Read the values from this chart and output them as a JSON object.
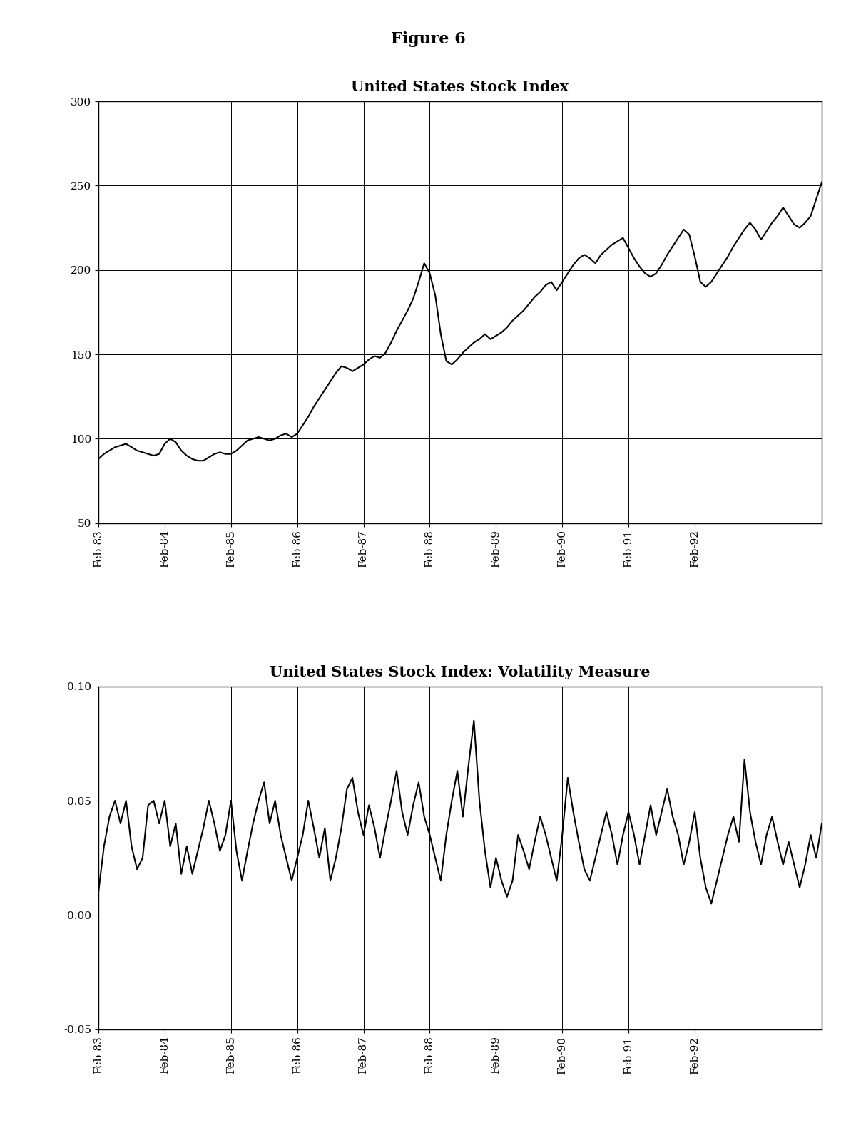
{
  "figure_title": "Figure 6",
  "plot1_title": "United States Stock Index",
  "plot2_title": "United States Stock Index: Volatility Measure",
  "x_labels": [
    "Feb-83",
    "Feb-84",
    "Feb-85",
    "Feb-86",
    "Feb-87",
    "Feb-88",
    "Feb-89",
    "Feb-90",
    "Feb-91",
    "Feb-92"
  ],
  "plot1_ylim": [
    50,
    300
  ],
  "plot1_yticks": [
    50,
    100,
    150,
    200,
    250,
    300
  ],
  "plot2_ylim": [
    -0.05,
    0.1
  ],
  "plot2_yticks": [
    -0.05,
    0.0,
    0.05,
    0.1
  ],
  "stock_index": [
    88,
    91,
    93,
    95,
    96,
    97,
    95,
    93,
    92,
    91,
    90,
    91,
    97,
    100,
    98,
    93,
    90,
    88,
    87,
    87,
    89,
    91,
    92,
    91,
    91,
    93,
    96,
    99,
    100,
    101,
    100,
    99,
    100,
    102,
    103,
    101,
    103,
    108,
    113,
    119,
    124,
    129,
    134,
    139,
    143,
    142,
    140,
    142,
    144,
    147,
    149,
    148,
    151,
    157,
    164,
    170,
    176,
    183,
    193,
    204,
    198,
    185,
    162,
    146,
    144,
    147,
    151,
    154,
    157,
    159,
    162,
    159,
    161,
    163,
    166,
    170,
    173,
    176,
    180,
    184,
    187,
    191,
    193,
    188,
    193,
    198,
    203,
    207,
    209,
    207,
    204,
    209,
    212,
    215,
    217,
    219,
    213,
    207,
    202,
    198,
    196,
    198,
    203,
    209,
    214,
    219,
    224,
    221,
    208,
    193,
    190,
    193,
    198,
    203,
    208,
    214,
    219,
    224,
    228,
    224,
    218,
    223,
    228,
    232,
    237,
    232,
    227,
    225,
    228,
    232,
    242,
    252
  ],
  "volatility": [
    0.01,
    0.03,
    0.043,
    0.05,
    0.04,
    0.05,
    0.03,
    0.02,
    0.025,
    0.048,
    0.05,
    0.04,
    0.05,
    0.03,
    0.04,
    0.018,
    0.03,
    0.018,
    0.028,
    0.038,
    0.05,
    0.04,
    0.028,
    0.035,
    0.05,
    0.028,
    0.015,
    0.028,
    0.04,
    0.05,
    0.058,
    0.04,
    0.05,
    0.035,
    0.025,
    0.015,
    0.025,
    0.035,
    0.05,
    0.038,
    0.025,
    0.038,
    0.015,
    0.025,
    0.038,
    0.055,
    0.06,
    0.045,
    0.035,
    0.048,
    0.038,
    0.025,
    0.038,
    0.05,
    0.063,
    0.045,
    0.035,
    0.048,
    0.058,
    0.043,
    0.035,
    0.025,
    0.015,
    0.035,
    0.05,
    0.063,
    0.043,
    0.065,
    0.085,
    0.05,
    0.028,
    0.012,
    0.025,
    0.015,
    0.008,
    0.015,
    0.035,
    0.028,
    0.02,
    0.032,
    0.043,
    0.035,
    0.025,
    0.015,
    0.035,
    0.06,
    0.045,
    0.032,
    0.02,
    0.015,
    0.025,
    0.035,
    0.045,
    0.035,
    0.022,
    0.035,
    0.045,
    0.035,
    0.022,
    0.035,
    0.048,
    0.035,
    0.045,
    0.055,
    0.043,
    0.035,
    0.022,
    0.032,
    0.045,
    0.025,
    0.012,
    0.005,
    0.015,
    0.025,
    0.035,
    0.043,
    0.032,
    0.068,
    0.045,
    0.032,
    0.022,
    0.035,
    0.043,
    0.032,
    0.022,
    0.032,
    0.022,
    0.012,
    0.022,
    0.035,
    0.025,
    0.04
  ],
  "line_color": "#000000",
  "line_width": 1.5,
  "background_color": "#ffffff",
  "grid_color": "#888888",
  "tick_label_fontsize": 11,
  "title_fontsize": 15,
  "figure_title_fontsize": 16
}
